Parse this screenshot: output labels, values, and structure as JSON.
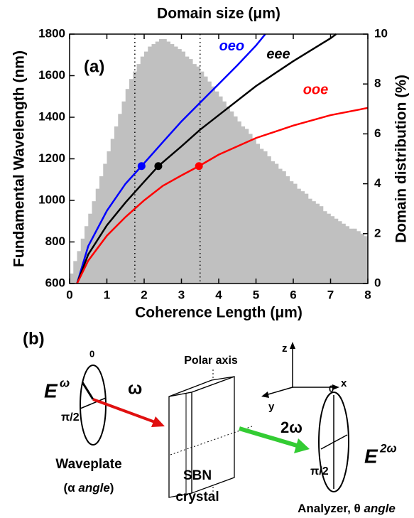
{
  "chart_data": [
    {
      "type": "histogram",
      "axis": "y2",
      "color": "#c0c0c0",
      "x2_label": "Domain size (μm)",
      "y2_label": "Domain distribution (%)",
      "y2lim": [
        0,
        10
      ],
      "y2ticks": [
        0,
        2,
        4,
        6,
        8,
        10
      ],
      "bins": [
        0,
        0.1,
        0.2,
        0.3,
        0.4,
        0.5,
        0.6,
        0.7,
        0.8,
        0.9,
        1,
        1.1,
        1.2,
        1.3,
        1.4,
        1.5,
        1.6,
        1.7,
        1.8,
        1.9,
        2,
        2.1,
        2.2,
        2.3,
        2.4,
        2.5,
        2.6,
        2.7,
        2.8,
        2.9,
        3,
        3.1,
        3.2,
        3.3,
        3.4,
        3.5,
        3.6,
        3.7,
        3.8,
        3.9,
        4,
        4.1,
        4.2,
        4.3,
        4.4,
        4.5,
        4.6,
        4.7,
        4.8,
        4.9,
        5,
        5.1,
        5.2,
        5.3,
        5.4,
        5.5,
        5.6,
        5.7,
        5.8,
        5.9,
        6,
        6.1,
        6.2,
        6.3,
        6.4,
        6.5,
        6.6,
        6.7,
        6.8,
        6.9,
        7,
        7.1,
        7.2,
        7.3,
        7.4,
        7.5,
        7.6,
        7.7,
        7.8,
        7.9,
        8
      ],
      "values": [
        0.4,
        0.9,
        1.3,
        1.8,
        2.3,
        2.8,
        3.3,
        3.8,
        4.3,
        4.8,
        5.3,
        5.8,
        6.3,
        6.8,
        7.3,
        7.8,
        8.2,
        8.5,
        8.8,
        9.1,
        9.3,
        9.5,
        9.6,
        9.7,
        9.8,
        9.8,
        9.7,
        9.6,
        9.5,
        9.4,
        9.3,
        9.1,
        9.0,
        8.8,
        8.7,
        8.5,
        8.3,
        8.1,
        7.9,
        7.7,
        7.5,
        7.3,
        7.1,
        6.9,
        6.7,
        6.5,
        6.3,
        6.2,
        6.0,
        5.8,
        5.6,
        5.4,
        5.3,
        5.1,
        4.9,
        4.8,
        4.6,
        4.5,
        4.3,
        4.1,
        4.0,
        3.8,
        3.7,
        3.6,
        3.4,
        3.3,
        3.2,
        3.1,
        2.9,
        2.8,
        2.7,
        2.6,
        2.5,
        2.4,
        2.3,
        2.2,
        2.2,
        2.1,
        2.0,
        1.9
      ]
    },
    {
      "type": "line",
      "panel_label": "(a)",
      "xlabel": "Coherence Length (μm)",
      "ylabel": "Fundamental Wavelength (nm)",
      "xlim": [
        0,
        8
      ],
      "xticks": [
        0,
        1,
        2,
        3,
        4,
        5,
        6,
        7,
        8
      ],
      "ylim": [
        600,
        1800
      ],
      "yticks": [
        600,
        800,
        1000,
        1200,
        1400,
        1600,
        1800
      ],
      "vlines": [
        1.75,
        3.5
      ],
      "series": [
        {
          "name": "oeo",
          "color": "#0000ff",
          "x": [
            0.2,
            0.5,
            1,
            1.5,
            1.93,
            2.5,
            3,
            3.5,
            4,
            4.5,
            5,
            5.25
          ],
          "values": [
            600,
            780,
            950,
            1080,
            1165,
            1280,
            1380,
            1470,
            1560,
            1650,
            1745,
            1800
          ],
          "marker": {
            "x": 1.93,
            "y": 1165
          }
        },
        {
          "name": "eee",
          "color": "#000000",
          "x": [
            0.2,
            0.5,
            1,
            1.5,
            2,
            2.38,
            3,
            3.5,
            4,
            5,
            6,
            7,
            7.15
          ],
          "values": [
            600,
            740,
            880,
            990,
            1090,
            1165,
            1260,
            1340,
            1410,
            1550,
            1670,
            1780,
            1800
          ],
          "marker": {
            "x": 2.38,
            "y": 1165
          }
        },
        {
          "name": "ooe",
          "color": "#ff0000",
          "x": [
            0.2,
            0.5,
            1,
            1.5,
            2,
            2.5,
            3,
            3.47,
            4,
            5,
            6,
            7,
            8
          ],
          "values": [
            600,
            710,
            830,
            920,
            1000,
            1070,
            1120,
            1165,
            1220,
            1300,
            1360,
            1410,
            1445
          ],
          "marker": {
            "x": 3.47,
            "y": 1165
          }
        }
      ]
    }
  ],
  "diagram": {
    "panel_label": "(b)",
    "polar_axis": "Polar axis",
    "z": "z",
    "x": "x",
    "y": "y",
    "omega": "ω",
    "two_omega": "2ω",
    "e_in": "E",
    "e_in_sup": "ω",
    "e_out": "E",
    "e_out_sup": "2ω",
    "wp_zero": "0",
    "wp_half": "π/2",
    "an_zero": "0",
    "an_half": "π/2",
    "waveplate": "Waveplate",
    "waveplate_angle_1": "(α ",
    "waveplate_angle_2": "angle",
    "waveplate_angle_3": ")",
    "sbn": "SBN",
    "crystal": "crystal",
    "analyzer_1": "Analyzer, θ ",
    "analyzer_2": "angle"
  }
}
